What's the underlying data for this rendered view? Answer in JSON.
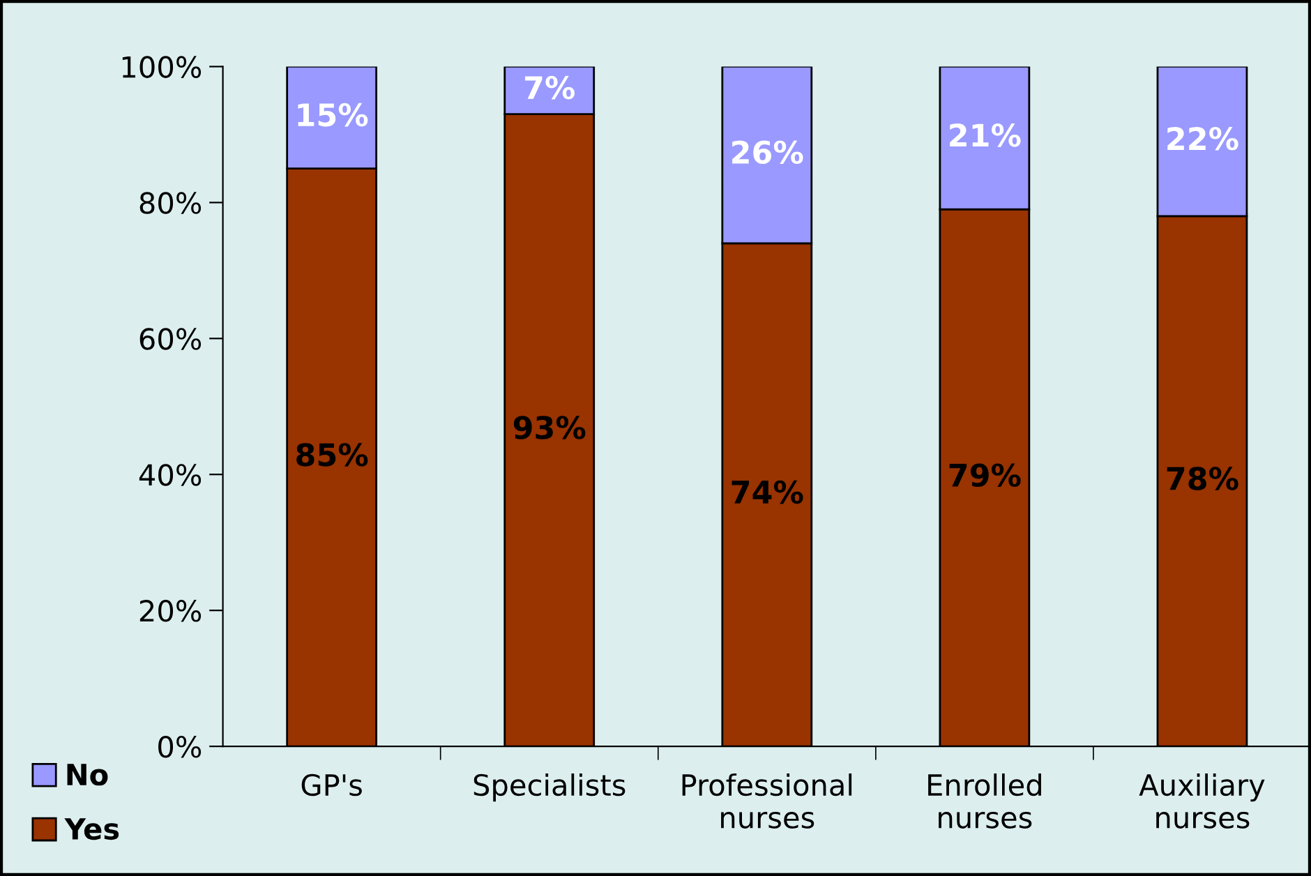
{
  "chart_data": {
    "type": "bar",
    "stacked": true,
    "categories": [
      "GP's",
      "Specialists",
      "Professional nurses",
      "Enrolled nurses",
      "Auxiliary nurses"
    ],
    "series": [
      {
        "name": "Yes",
        "color": "#993300",
        "values": [
          85,
          93,
          74,
          79,
          78
        ],
        "value_labels": [
          "85%",
          "93%",
          "74%",
          "79%",
          "78%"
        ]
      },
      {
        "name": "No",
        "color": "#9999ff",
        "values": [
          15,
          7,
          26,
          21,
          22
        ],
        "value_labels": [
          "15%",
          "7%",
          "26%",
          "21%",
          "22%"
        ]
      }
    ],
    "ylim": [
      0,
      100
    ],
    "yticks": [
      {
        "value": 0,
        "label": "0%"
      },
      {
        "value": 20,
        "label": "20%"
      },
      {
        "value": 40,
        "label": "40%"
      },
      {
        "value": 60,
        "label": "60%"
      },
      {
        "value": 80,
        "label": "80%"
      },
      {
        "value": 100,
        "label": "100%"
      }
    ],
    "grid": false,
    "legend": "bottom left"
  }
}
